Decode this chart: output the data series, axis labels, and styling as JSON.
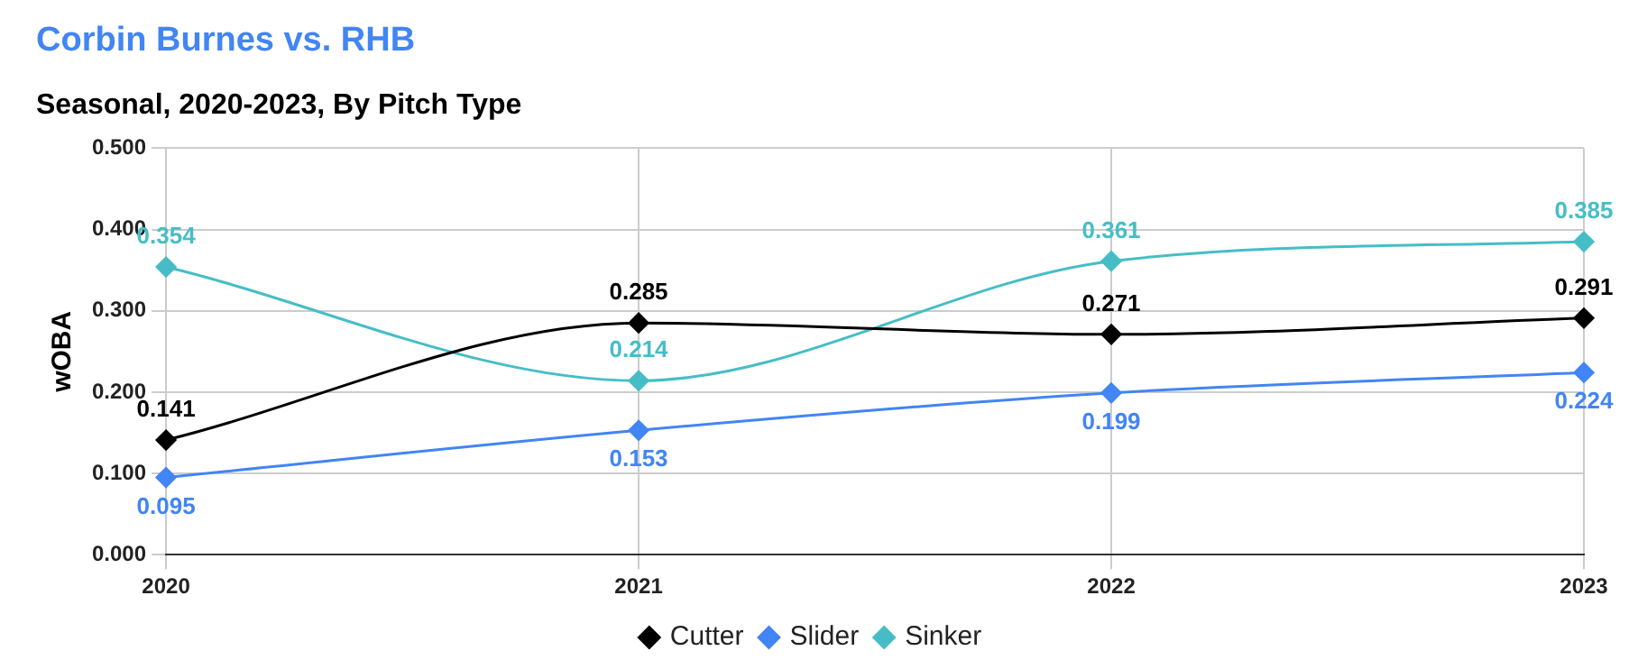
{
  "chart_data": {
    "type": "line",
    "title": "Corbin Burnes vs. RHB",
    "subtitle": "Seasonal, 2020-2023, By Pitch Type",
    "ylabel": "wOBA",
    "categories": [
      "2020",
      "2021",
      "2022",
      "2023"
    ],
    "series": [
      {
        "name": "Cutter",
        "color": "#000000",
        "values": [
          0.141,
          0.285,
          0.271,
          0.291
        ]
      },
      {
        "name": "Slider",
        "color": "#4285f4",
        "values": [
          0.095,
          0.153,
          0.199,
          0.224
        ]
      },
      {
        "name": "Sinker",
        "color": "#46bdc6",
        "values": [
          0.354,
          0.214,
          0.361,
          0.385
        ]
      }
    ],
    "ylim": [
      0,
      0.5
    ],
    "yticks": [
      {
        "value": 0,
        "label": "0.000"
      },
      {
        "value": 0.1,
        "label": "0.100"
      },
      {
        "value": 0.2,
        "label": "0.200"
      },
      {
        "value": 0.3,
        "label": "0.300"
      },
      {
        "value": 0.4,
        "label": "0.400"
      },
      {
        "value": 0.5,
        "label": "0.500"
      }
    ],
    "grid": true,
    "legend": "bottom",
    "marker": "diamond",
    "line_style": "solid",
    "data_labels": true
  }
}
